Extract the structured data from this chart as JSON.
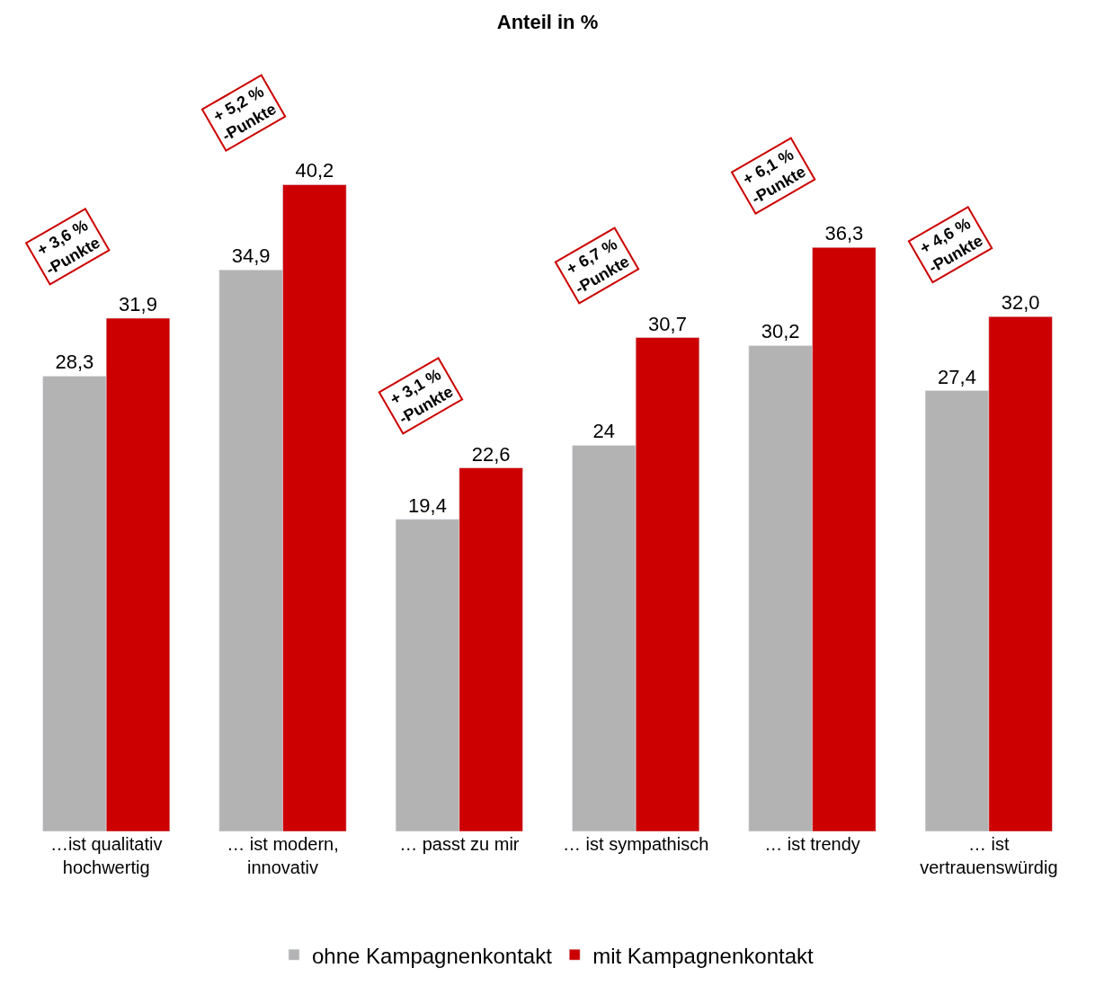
{
  "chart_data": {
    "type": "bar",
    "title": "Anteil in %",
    "categories": [
      "…ist qualitativ\nhochwertig",
      "… ist modern,\ninnovativ",
      "… passt zu mir",
      "… ist sympathisch",
      "… ist trendy",
      "… ist\nvertrauenswürdig"
    ],
    "series": [
      {
        "name": "ohne Kampagnenkontakt",
        "color": "#b3b3b3",
        "values": [
          28.3,
          34.9,
          19.4,
          24,
          30.2,
          27.4
        ],
        "value_labels": [
          "28,3",
          "34,9",
          "19,4",
          "24",
          "30,2",
          "27,4"
        ]
      },
      {
        "name": "mit Kampagnenkontakt",
        "color": "#cc0000",
        "values": [
          31.9,
          40.2,
          22.6,
          30.7,
          36.3,
          32.0
        ],
        "value_labels": [
          "31,9",
          "40,2",
          "22,6",
          "30,7",
          "36,3",
          "32,0"
        ]
      }
    ],
    "annotations": [
      "+ 3,6 %\n-Punkte",
      "+ 5,2 %\n-Punkte",
      "+ 3,1 %\n-Punkte",
      "+ 6,7 %\n-Punkte",
      "+ 6,1 %\n-Punkte",
      "+ 4,6 %\n-Punkte"
    ],
    "legend": "bottom"
  }
}
